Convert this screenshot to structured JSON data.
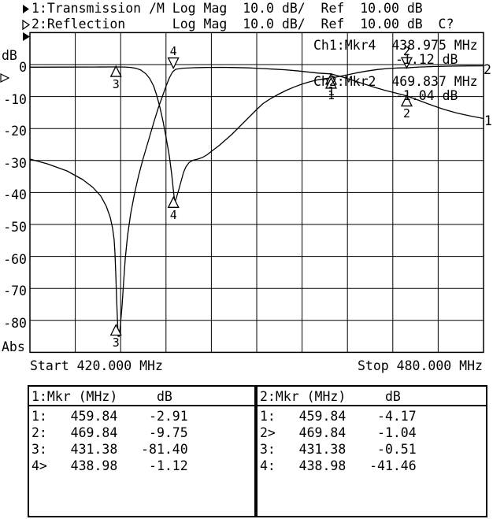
{
  "header": {
    "line1": "1:Transmission /M Log Mag  10.0 dB/  Ref  10.00 dB",
    "line2": "2:Reflection      Log Mag  10.0 dB/  Ref  10.00 dB  C?",
    "icons": {
      "ch1_flag": "filled-right-triangle",
      "ch2_flag": "hollow-right-triangle",
      "ref_level_marker": "filled-right-triangle"
    }
  },
  "axis": {
    "unit_label": "dB",
    "abs_label": "Abs",
    "y_ticks": [
      "0",
      "-10",
      "-20",
      "-30",
      "-40",
      "-50",
      "-60",
      "-70",
      "-80"
    ],
    "start_label": "Start 420.000 MHz",
    "stop_label": "Stop 480.000 MHz"
  },
  "readout": {
    "ch1_line": "Ch1:Mkr4  438.975 MHz",
    "ch1_value": "-1.12 dB",
    "ch2_line": "Ch2:Mkr2  469.837 MHz",
    "ch2_value": "-1.04 dB"
  },
  "trace_end_labels": {
    "trace1": "1",
    "trace2": "2"
  },
  "marker_table": {
    "left": {
      "header": "1:Mkr (MHz)     dB",
      "rows": [
        {
          "id": "1:",
          "freq": "459.84",
          "db": "-2.91"
        },
        {
          "id": "2:",
          "freq": "469.84",
          "db": "-9.75"
        },
        {
          "id": "3:",
          "freq": "431.38",
          "db": "-81.40"
        },
        {
          "id": "4>",
          "freq": "438.98",
          "db": "-1.12"
        }
      ]
    },
    "right": {
      "header": "2:Mkr (MHz)     dB",
      "rows": [
        {
          "id": "1:",
          "freq": "459.84",
          "db": "-4.17"
        },
        {
          "id": "2>",
          "freq": "469.84",
          "db": "-1.04"
        },
        {
          "id": "3:",
          "freq": "431.38",
          "db": "-0.51"
        },
        {
          "id": "4:",
          "freq": "438.98",
          "db": "-41.46"
        }
      ]
    }
  },
  "chart_data": {
    "type": "line",
    "x_unit": "MHz",
    "y_unit": "dB",
    "xlim": [
      420,
      480
    ],
    "ylim": [
      -90,
      10
    ],
    "x_divisions": 10,
    "y_divisions": 10,
    "scale_per_division": "10.0 dB/",
    "reference_level": "10.00 dB",
    "grid": true,
    "series": [
      {
        "name": "1:Transmission",
        "points": [
          [
            420.0,
            -29.56
          ],
          [
            422.29,
            -31.03
          ],
          [
            424.9,
            -33.25
          ],
          [
            426.98,
            -35.96
          ],
          [
            428.33,
            -38.42
          ],
          [
            429.38,
            -41.13
          ],
          [
            430.1,
            -44.33
          ],
          [
            430.63,
            -47.78
          ],
          [
            430.94,
            -51.23
          ],
          [
            431.15,
            -54.93
          ],
          [
            431.25,
            -59.11
          ],
          [
            431.35,
            -65.27
          ],
          [
            431.46,
            -72.91
          ],
          [
            431.56,
            -79.06
          ],
          [
            431.67,
            -84.98
          ],
          [
            431.82,
            -84.98
          ],
          [
            431.98,
            -81.28
          ],
          [
            432.19,
            -75.37
          ],
          [
            432.4,
            -67.98
          ],
          [
            432.6,
            -60.84
          ],
          [
            432.92,
            -53.45
          ],
          [
            433.33,
            -46.55
          ],
          [
            433.85,
            -40.15
          ],
          [
            434.38,
            -34.73
          ],
          [
            434.9,
            -30.05
          ],
          [
            435.42,
            -25.86
          ],
          [
            435.94,
            -21.67
          ],
          [
            436.46,
            -17.49
          ],
          [
            436.98,
            -13.55
          ],
          [
            437.5,
            -10.1
          ],
          [
            438.02,
            -6.65
          ],
          [
            438.44,
            -4.19
          ],
          [
            438.85,
            -2.34
          ],
          [
            439.27,
            -1.48
          ],
          [
            440.21,
            -1.13
          ],
          [
            441.67,
            -0.99
          ],
          [
            443.54,
            -0.89
          ],
          [
            445.42,
            -0.86
          ],
          [
            447.29,
            -0.94
          ],
          [
            448.96,
            -1.03
          ],
          [
            450.63,
            -1.23
          ],
          [
            452.29,
            -1.43
          ],
          [
            453.75,
            -1.63
          ],
          [
            455.21,
            -1.92
          ],
          [
            456.67,
            -2.29
          ],
          [
            458.13,
            -2.66
          ],
          [
            459.79,
            -2.91
          ],
          [
            461.25,
            -3.82
          ],
          [
            462.71,
            -4.93
          ],
          [
            464.17,
            -6.03
          ],
          [
            465.63,
            -7.14
          ],
          [
            467.08,
            -8.13
          ],
          [
            468.54,
            -8.99
          ],
          [
            469.79,
            -9.75
          ],
          [
            471.46,
            -11.21
          ],
          [
            473.13,
            -12.68
          ],
          [
            474.79,
            -14.04
          ],
          [
            476.46,
            -15.15
          ],
          [
            478.13,
            -16.01
          ],
          [
            480.0,
            -16.87
          ]
        ]
      },
      {
        "name": "2:Reflection",
        "points": [
          [
            420.0,
            -0.81
          ],
          [
            424.38,
            -0.79
          ],
          [
            428.54,
            -0.76
          ],
          [
            431.35,
            -0.74
          ],
          [
            432.5,
            -0.76
          ],
          [
            433.33,
            -0.89
          ],
          [
            434.06,
            -1.18
          ],
          [
            434.69,
            -1.72
          ],
          [
            435.31,
            -2.83
          ],
          [
            435.83,
            -4.31
          ],
          [
            436.35,
            -6.65
          ],
          [
            436.77,
            -9.61
          ],
          [
            437.19,
            -13.3
          ],
          [
            437.6,
            -17.73
          ],
          [
            438.02,
            -22.91
          ],
          [
            438.44,
            -28.57
          ],
          [
            438.75,
            -34.24
          ],
          [
            438.96,
            -38.92
          ],
          [
            439.17,
            -43.1
          ],
          [
            439.38,
            -41.63
          ],
          [
            439.69,
            -39.16
          ],
          [
            440.0,
            -36.45
          ],
          [
            440.31,
            -33.74
          ],
          [
            440.63,
            -32.02
          ],
          [
            441.04,
            -30.67
          ],
          [
            441.56,
            -29.93
          ],
          [
            442.19,
            -29.56
          ],
          [
            442.81,
            -29.06
          ],
          [
            443.44,
            -28.2
          ],
          [
            444.17,
            -26.85
          ],
          [
            445.0,
            -25.37
          ],
          [
            445.83,
            -23.65
          ],
          [
            446.67,
            -21.92
          ],
          [
            447.5,
            -19.95
          ],
          [
            448.33,
            -17.98
          ],
          [
            449.17,
            -16.01
          ],
          [
            450.0,
            -14.04
          ],
          [
            450.83,
            -12.19
          ],
          [
            451.88,
            -10.59
          ],
          [
            452.92,
            -9.24
          ],
          [
            453.96,
            -8.0
          ],
          [
            455.0,
            -6.97
          ],
          [
            456.04,
            -6.06
          ],
          [
            457.08,
            -5.32
          ],
          [
            458.13,
            -4.75
          ],
          [
            459.17,
            -4.36
          ],
          [
            459.79,
            -4.17
          ],
          [
            460.63,
            -3.84
          ],
          [
            461.88,
            -3.25
          ],
          [
            463.13,
            -2.64
          ],
          [
            464.58,
            -2.02
          ],
          [
            466.04,
            -1.53
          ],
          [
            467.5,
            -1.21
          ],
          [
            468.96,
            -1.03
          ],
          [
            469.84,
            -1.04
          ],
          [
            471.46,
            -0.76
          ],
          [
            473.33,
            -0.62
          ],
          [
            475.63,
            -0.49
          ],
          [
            477.92,
            -0.42
          ],
          [
            480.0,
            -0.39
          ]
        ]
      }
    ],
    "markers": [
      {
        "n": "1",
        "trace": 1,
        "freq": 459.84,
        "db": -2.91,
        "active": false
      },
      {
        "n": "1",
        "trace": 2,
        "freq": 459.84,
        "db": -4.17,
        "active": false
      },
      {
        "n": "2",
        "trace": 1,
        "freq": 469.84,
        "db": -9.75,
        "active": false
      },
      {
        "n": "2",
        "trace": 2,
        "freq": 469.837,
        "db": -1.04,
        "active": true
      },
      {
        "n": "3",
        "trace": 1,
        "freq": 431.38,
        "db": -81.4,
        "active": false
      },
      {
        "n": "3",
        "trace": 2,
        "freq": 431.38,
        "db": -0.51,
        "active": false
      },
      {
        "n": "4",
        "trace": 1,
        "freq": 438.975,
        "db": -1.12,
        "active": true
      },
      {
        "n": "4",
        "trace": 2,
        "freq": 438.98,
        "db": -41.46,
        "active": false
      }
    ]
  }
}
